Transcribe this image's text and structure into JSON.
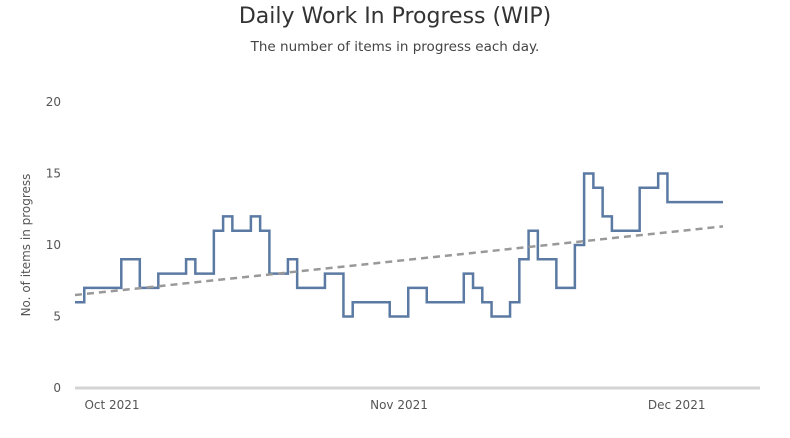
{
  "chart_data": {
    "type": "line",
    "title": "Daily Work In Progress (WIP)",
    "subtitle": "The number of items in progress each day.",
    "xlabel": "",
    "ylabel": "No. of items in progress",
    "ylim": [
      0,
      20
    ],
    "y_ticks": [
      0,
      5,
      10,
      15,
      20
    ],
    "x_ticks": [
      {
        "date": "2021-10-01",
        "label": "Oct 2021"
      },
      {
        "date": "2021-11-01",
        "label": "Nov 2021"
      },
      {
        "date": "2021-12-01",
        "label": "Dec 2021"
      }
    ],
    "xlim": [
      "2021-09-27",
      "2021-12-10"
    ],
    "grid": false,
    "series": [
      {
        "name": "",
        "style": "step",
        "color": "#5b7aa3",
        "points": [
          {
            "x": "2021-09-27",
            "y": 6
          },
          {
            "x": "2021-09-28",
            "y": 7
          },
          {
            "x": "2021-10-02",
            "y": 9
          },
          {
            "x": "2021-10-04",
            "y": 7
          },
          {
            "x": "2021-10-06",
            "y": 8
          },
          {
            "x": "2021-10-09",
            "y": 9
          },
          {
            "x": "2021-10-10",
            "y": 8
          },
          {
            "x": "2021-10-12",
            "y": 11
          },
          {
            "x": "2021-10-13",
            "y": 12
          },
          {
            "x": "2021-10-14",
            "y": 11
          },
          {
            "x": "2021-10-16",
            "y": 12
          },
          {
            "x": "2021-10-17",
            "y": 11
          },
          {
            "x": "2021-10-18",
            "y": 8
          },
          {
            "x": "2021-10-20",
            "y": 9
          },
          {
            "x": "2021-10-21",
            "y": 7
          },
          {
            "x": "2021-10-24",
            "y": 8
          },
          {
            "x": "2021-10-26",
            "y": 5
          },
          {
            "x": "2021-10-27",
            "y": 6
          },
          {
            "x": "2021-10-31",
            "y": 5
          },
          {
            "x": "2021-11-02",
            "y": 7
          },
          {
            "x": "2021-11-04",
            "y": 6
          },
          {
            "x": "2021-11-08",
            "y": 8
          },
          {
            "x": "2021-11-09",
            "y": 7
          },
          {
            "x": "2021-11-10",
            "y": 6
          },
          {
            "x": "2021-11-11",
            "y": 5
          },
          {
            "x": "2021-11-13",
            "y": 6
          },
          {
            "x": "2021-11-14",
            "y": 9
          },
          {
            "x": "2021-11-15",
            "y": 11
          },
          {
            "x": "2021-11-16",
            "y": 9
          },
          {
            "x": "2021-11-18",
            "y": 7
          },
          {
            "x": "2021-11-20",
            "y": 10
          },
          {
            "x": "2021-11-21",
            "y": 15
          },
          {
            "x": "2021-11-22",
            "y": 14
          },
          {
            "x": "2021-11-23",
            "y": 12
          },
          {
            "x": "2021-11-24",
            "y": 11
          },
          {
            "x": "2021-11-27",
            "y": 14
          },
          {
            "x": "2021-11-29",
            "y": 15
          },
          {
            "x": "2021-11-30",
            "y": 13
          },
          {
            "x": "2021-12-06",
            "y": 13
          }
        ]
      },
      {
        "name": "",
        "style": "dashed-trend",
        "color": "#999999",
        "points": [
          {
            "x": "2021-09-27",
            "y": 6.5
          },
          {
            "x": "2021-12-06",
            "y": 11.3
          }
        ]
      }
    ]
  }
}
